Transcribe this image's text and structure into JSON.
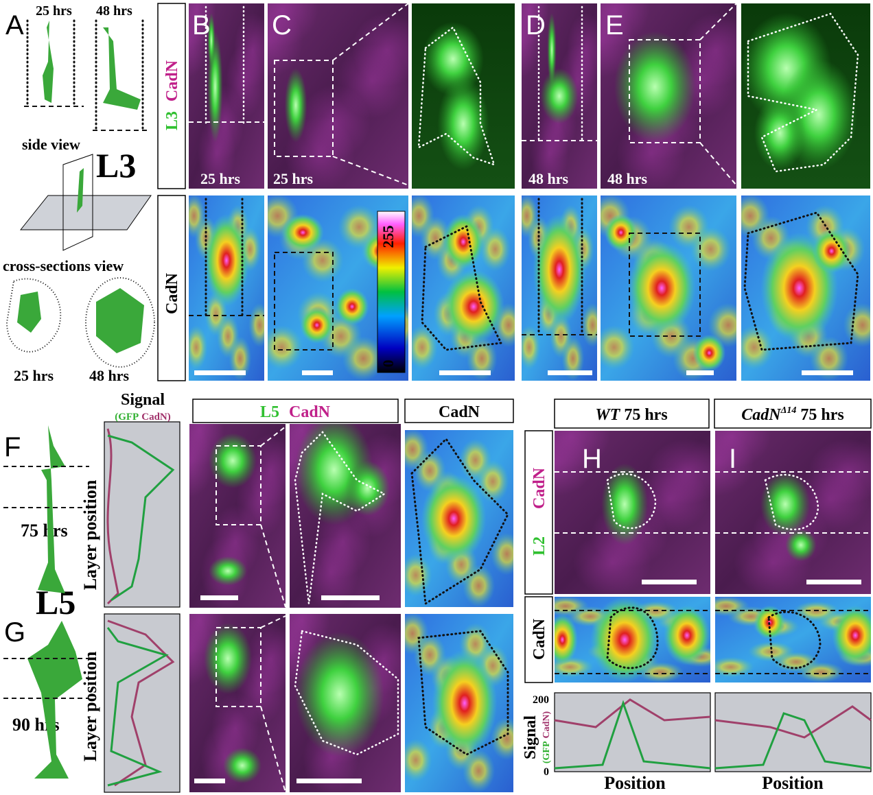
{
  "panel_labels": [
    "A",
    "B",
    "C",
    "D",
    "E",
    "F",
    "G",
    "H",
    "I"
  ],
  "panel_a": {
    "time_left": "25 hrs",
    "time_right": "48 hrs",
    "side_view": "side view",
    "neuron": "L3",
    "cross_sections": "cross-sections view",
    "time_bottom_left": "25 hrs",
    "time_bottom_right": "48 hrs"
  },
  "row_labels": {
    "l3": "L3",
    "cadn_magenta": "CadN",
    "cadn_heat": "CadN"
  },
  "time_labels": {
    "b": "25 hrs",
    "c": "25 hrs",
    "d": "48 hrs",
    "e": "48 hrs"
  },
  "colorbar": {
    "max": "255",
    "min": "0"
  },
  "panel_fg": {
    "f_time": "75 hrs",
    "neuron": "L5",
    "g_time": "90 hrs"
  },
  "signal_profile": {
    "title": "Signal",
    "legend_gfp": "(GFP",
    "legend_cadn": "CadN)",
    "axis_f": "Layer position",
    "axis_g": "Layer position"
  },
  "headers": {
    "l5": "L5",
    "cadn": "CadN",
    "cadn_heat": "CadN",
    "wt": "WT",
    "wt_time": "75 hrs",
    "mutant": "CadN",
    "mutant_sup": "Δ14",
    "mutant_time": "75 hrs"
  },
  "panel_hi": {
    "label_cadn": "CadN",
    "label_l2": "L2",
    "label_heat": "CadN",
    "signal": "Signal",
    "legend_gfp": "(GFP",
    "legend_cadn": "CadN)",
    "tick_max": "200",
    "tick_min": "0",
    "xlabel_h": "Position",
    "xlabel_i": "Position"
  }
}
